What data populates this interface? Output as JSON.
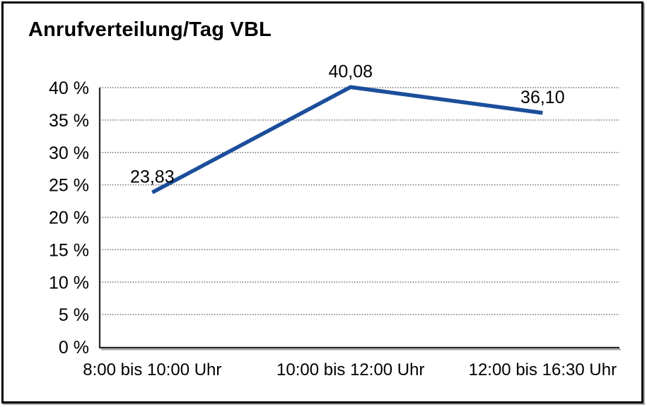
{
  "frame": {
    "background": "#ffffff",
    "border_color": "#000000"
  },
  "chart_data": {
    "type": "line",
    "title": "Anrufverteilung/Tag VBL",
    "categories": [
      "8:00 bis 10:00 Uhr",
      "10:00 bis 12:00 Uhr",
      "12:00 bis 16:30 Uhr"
    ],
    "series": [
      {
        "values": [
          23.83,
          40.08,
          36.1
        ],
        "color": "#1b4e9b",
        "data_labels": [
          "23,83",
          "40,08",
          "36,10"
        ]
      }
    ],
    "xlabel": "",
    "ylabel": "",
    "ylim": [
      0,
      40
    ],
    "y_ticks": [
      {
        "value": 0,
        "label": "0 %"
      },
      {
        "value": 5,
        "label": "5 %"
      },
      {
        "value": 10,
        "label": "10 %"
      },
      {
        "value": 15,
        "label": "15 %"
      },
      {
        "value": 20,
        "label": "20 %"
      },
      {
        "value": 25,
        "label": "25 %"
      },
      {
        "value": 30,
        "label": "30 %"
      },
      {
        "value": 35,
        "label": "35 %"
      },
      {
        "value": 40,
        "label": "40 %"
      }
    ],
    "grid": "horizontal-dotted",
    "legend": "none",
    "markers": "none"
  }
}
